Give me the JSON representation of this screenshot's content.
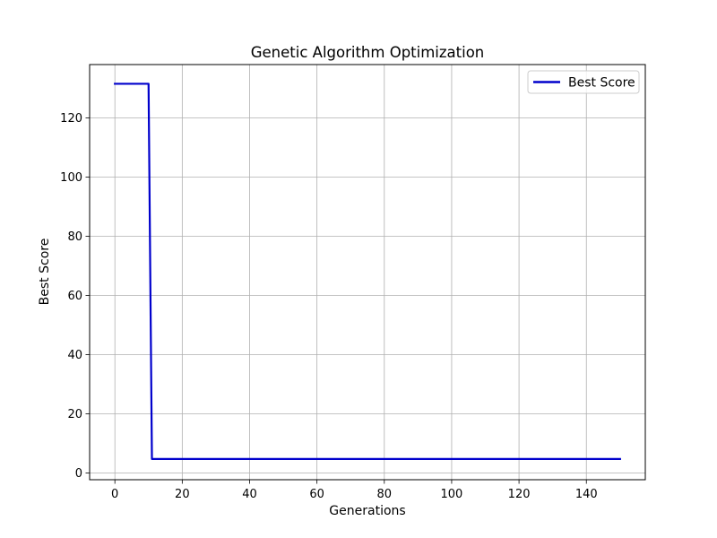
{
  "chart_data": {
    "type": "line",
    "title": "Genetic Algorithm Optimization",
    "xlabel": "Generations",
    "ylabel": "Best Score",
    "xlim": [
      -7.5,
      157.5
    ],
    "ylim": [
      -2.3,
      138.0
    ],
    "xticks": [
      0,
      20,
      40,
      60,
      80,
      100,
      120,
      140
    ],
    "yticks": [
      0,
      20,
      40,
      60,
      80,
      100,
      120
    ],
    "grid": true,
    "legend_position": "upper right",
    "series": [
      {
        "name": "Best Score",
        "color": "#0000cc",
        "x": [
          0,
          1,
          2,
          3,
          4,
          5,
          6,
          7,
          8,
          9,
          10,
          11,
          150
        ],
        "y": [
          131.5,
          131.5,
          131.5,
          131.5,
          131.5,
          131.5,
          131.5,
          131.5,
          131.5,
          131.5,
          131.5,
          4.7,
          4.7
        ]
      }
    ]
  }
}
